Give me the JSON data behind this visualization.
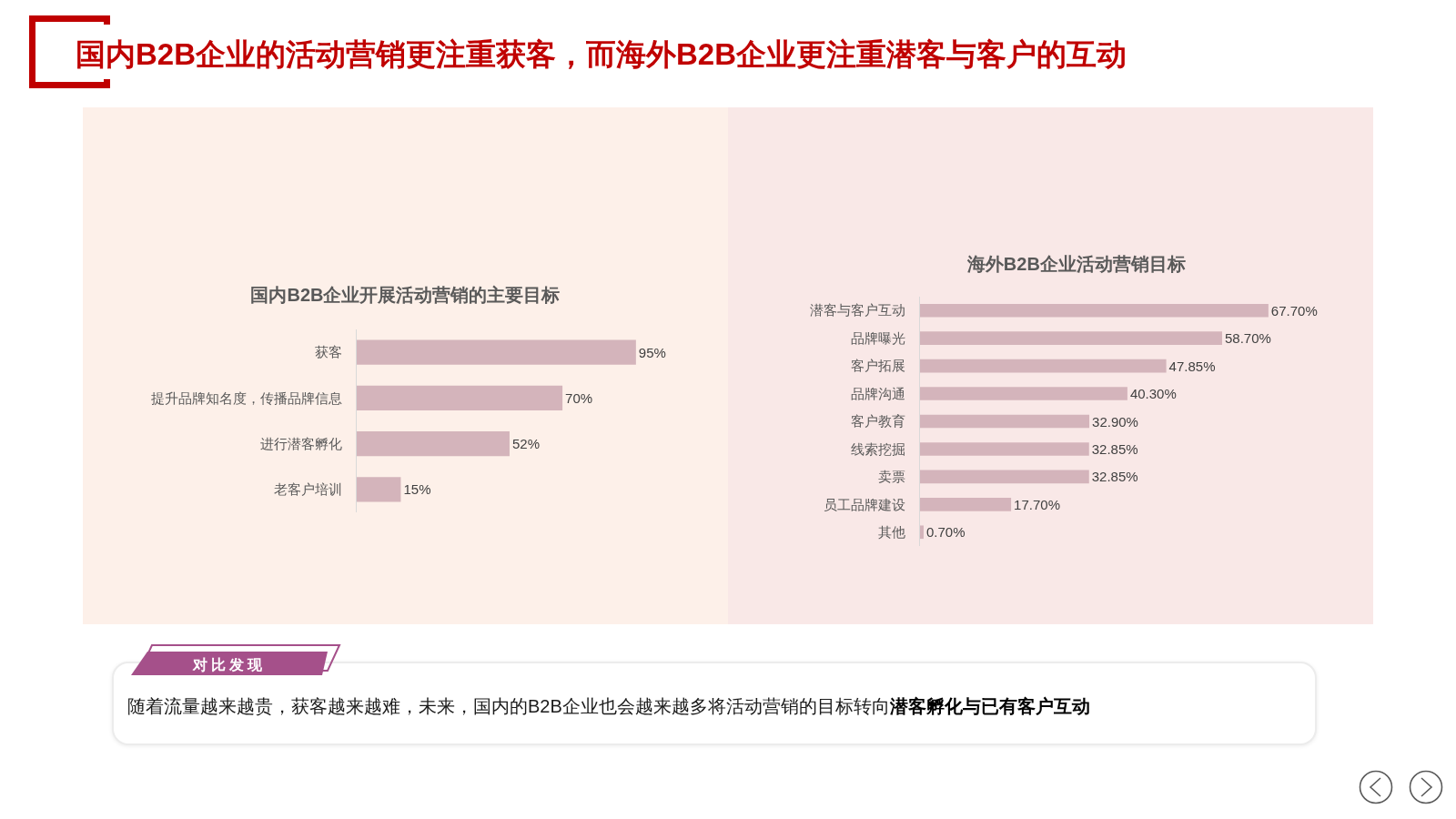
{
  "chart_data": [
    {
      "type": "other",
      "title": "国内B2B企业的活动营销更注重获客，而海外B2B企业更注重潜客与客户的互动"
    },
    {
      "type": "bar",
      "orientation": "horizontal",
      "title": "国内B2B企业开展活动营销的主要目标",
      "categories": [
        "获客",
        "提升品牌知名度，传播品牌信息",
        "进行潜客孵化",
        "老客户培训"
      ],
      "values": [
        95,
        70,
        52,
        15
      ],
      "value_labels": [
        "95%",
        "70%",
        "52%",
        "15%"
      ],
      "color": "#d4b4bb",
      "tick_labels": "y"
    },
    {
      "type": "bar",
      "orientation": "horizontal",
      "title": "海外B2B企业活动营销目标",
      "categories": [
        "潜客与客户互动",
        "品牌曝光",
        "客户拓展",
        "品牌沟通",
        "客户教育",
        "线索挖掘",
        "卖票",
        "员工品牌建设",
        "其他"
      ],
      "values": [
        67.7,
        58.7,
        47.85,
        40.3,
        32.9,
        32.85,
        32.85,
        17.7,
        0.7
      ],
      "value_labels": [
        "67.70%",
        "58.70%",
        "47.85%",
        "40.30%",
        "32.90%",
        "32.85%",
        "32.85%",
        "17.70%",
        "0.70%"
      ],
      "color": "#d4b4bb",
      "tick_labels": "y"
    },
    {
      "type": "other",
      "title": "对比发现",
      "annotations": [
        "随着流量越来越贵，获客越来越难，未来，国内的B2B企业也会越来越多将活动营销的目标转向",
        "潜客孵化与已有客户互动"
      ]
    }
  ]
}
